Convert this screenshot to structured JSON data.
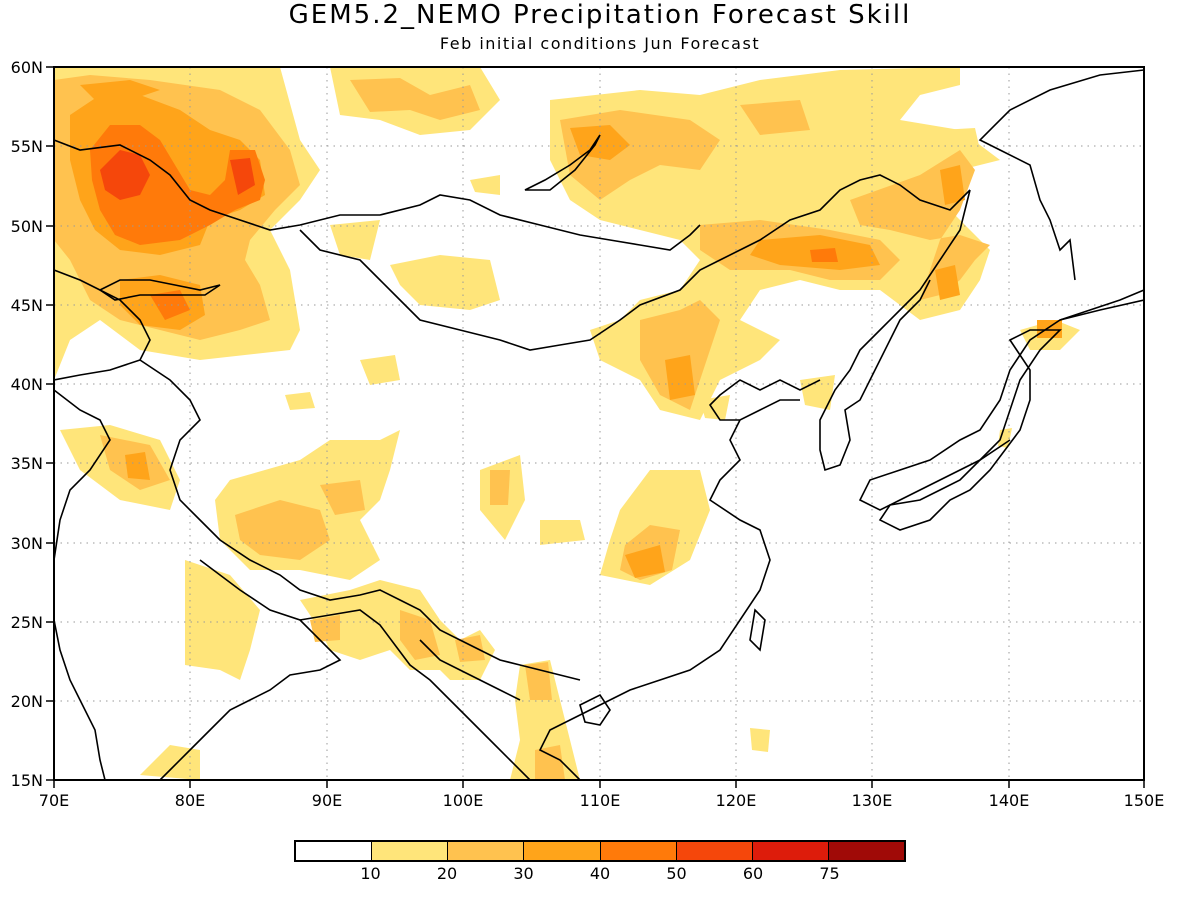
{
  "title": "GEM5.2_NEMO Precipitation Forecast Skill",
  "subtitle": "Feb initial conditions  Jun Forecast",
  "map": {
    "lon_range": [
      70,
      150
    ],
    "lat_range": [
      15,
      60
    ],
    "lon_labels": [
      "70E",
      "80E",
      "90E",
      "100E",
      "110E",
      "120E",
      "130E",
      "140E",
      "150E"
    ],
    "lat_labels": [
      "15N",
      "20N",
      "25N",
      "30N",
      "35N",
      "40N",
      "45N",
      "50N",
      "55N",
      "60N"
    ],
    "grid": "dotted"
  },
  "colorbar": {
    "colors": [
      "#ffffff",
      "#ffe57a",
      "#ffc24f",
      "#ffa41a",
      "#ff7a0a",
      "#f5470b",
      "#dd1c0b",
      "#a00a07"
    ],
    "tick_labels": [
      "10",
      "20",
      "30",
      "40",
      "50",
      "60",
      "75"
    ]
  }
}
